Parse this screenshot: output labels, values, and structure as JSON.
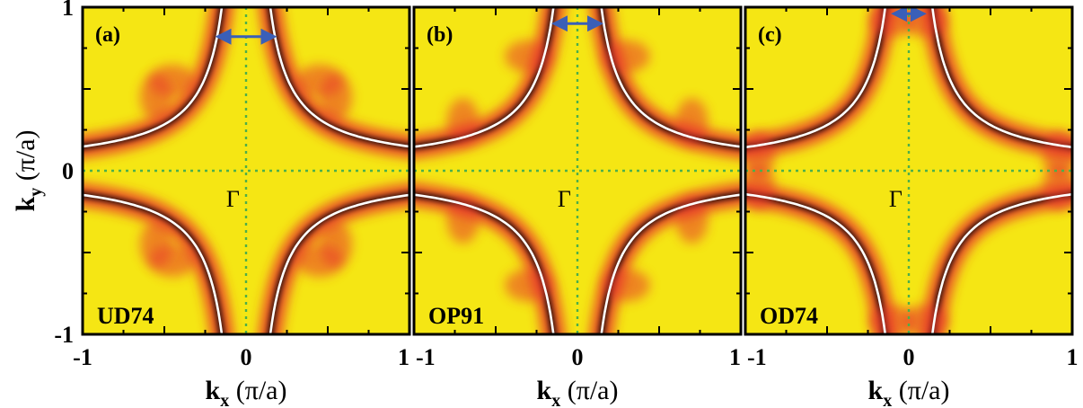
{
  "figure": {
    "ylabel_main": "k",
    "ylabel_sub": "y",
    "ylabel_unit": " (π/a)",
    "xlabel_main": "k",
    "xlabel_sub": "x",
    "xlabel_unit": " (π/a)",
    "center_label": "Γ"
  },
  "chart_data": [
    {
      "type": "heatmap",
      "panel_label": "(a)",
      "sample_label": "UD74",
      "x_range": [
        -1,
        1
      ],
      "y_range": [
        -1,
        1
      ],
      "x_ticks": [
        "-1",
        "0",
        "1"
      ],
      "y_ticks": [
        "1",
        "0",
        "-1"
      ],
      "fermi_surface_gap": 0.12,
      "arrow_span_kx": [
        -0.14,
        0.14
      ],
      "arrow_ky": 0.82,
      "intensity_center_kx_ky": [
        0.45,
        0.55
      ],
      "colors": {
        "background": "#f5e614",
        "spectral_mid": "#e8392a",
        "spectral_high": "#000000",
        "fermi_contour": "#ffffff",
        "zero_lines": "#4daf4a",
        "arrow": "#3a5fb8"
      }
    },
    {
      "type": "heatmap",
      "panel_label": "(b)",
      "sample_label": "OP91",
      "x_range": [
        -1,
        1
      ],
      "y_range": [
        -1,
        1
      ],
      "x_ticks": [
        "-1",
        "0",
        "1"
      ],
      "y_ticks": [
        "1",
        "0",
        "-1"
      ],
      "fermi_surface_gap": 0.1,
      "arrow_span_kx": [
        -0.11,
        0.11
      ],
      "arrow_ky": 0.9,
      "intensity_center_kx_ky": [
        0.3,
        0.7
      ],
      "colors": {
        "background": "#f5e614",
        "spectral_mid": "#e8392a",
        "spectral_high": "#000000",
        "fermi_contour": "#ffffff",
        "zero_lines": "#4daf4a",
        "arrow": "#3a5fb8"
      }
    },
    {
      "type": "heatmap",
      "panel_label": "(c)",
      "sample_label": "OD74",
      "x_range": [
        -1,
        1
      ],
      "y_range": [
        -1,
        1
      ],
      "x_ticks": [
        "-1",
        "0",
        "1"
      ],
      "y_ticks": [
        "1",
        "0",
        "-1"
      ],
      "fermi_surface_gap": 0.07,
      "arrow_span_kx": [
        -0.06,
        0.06
      ],
      "arrow_ky": 0.96,
      "intensity_center_kx_ky": [
        0.1,
        0.92
      ],
      "colors": {
        "background": "#f5e614",
        "spectral_mid": "#e8392a",
        "spectral_high": "#000000",
        "fermi_contour": "#ffffff",
        "zero_lines": "#4daf4a",
        "arrow": "#3a5fb8"
      }
    }
  ]
}
